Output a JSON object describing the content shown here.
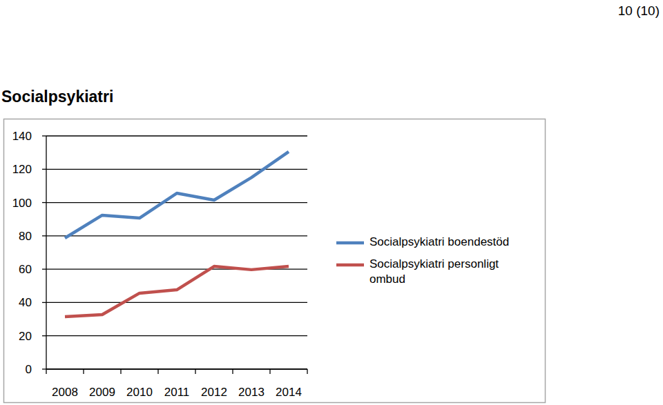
{
  "page_label": "10 (10)",
  "chart_data": {
    "type": "line",
    "title": "Socialpsykiatri",
    "categories": [
      "2008",
      "2009",
      "2010",
      "2011",
      "2012",
      "2013",
      "2014"
    ],
    "series": [
      {
        "name": "Socialpsykiatri boendestöd",
        "color": "#4f81bd",
        "values": [
          78.7,
          92.4,
          90.7,
          105.6,
          101.5,
          115,
          130.5
        ]
      },
      {
        "name": "Socialpsykiatri personligt ombud",
        "color": "#c0504d",
        "values": [
          31.5,
          32.7,
          45.6,
          47.6,
          61.7,
          59.7,
          61.7
        ]
      }
    ],
    "ylim": [
      0,
      140
    ],
    "yticks": [
      0,
      20,
      40,
      60,
      80,
      100,
      120,
      140
    ],
    "grid": true,
    "legend": "right"
  }
}
